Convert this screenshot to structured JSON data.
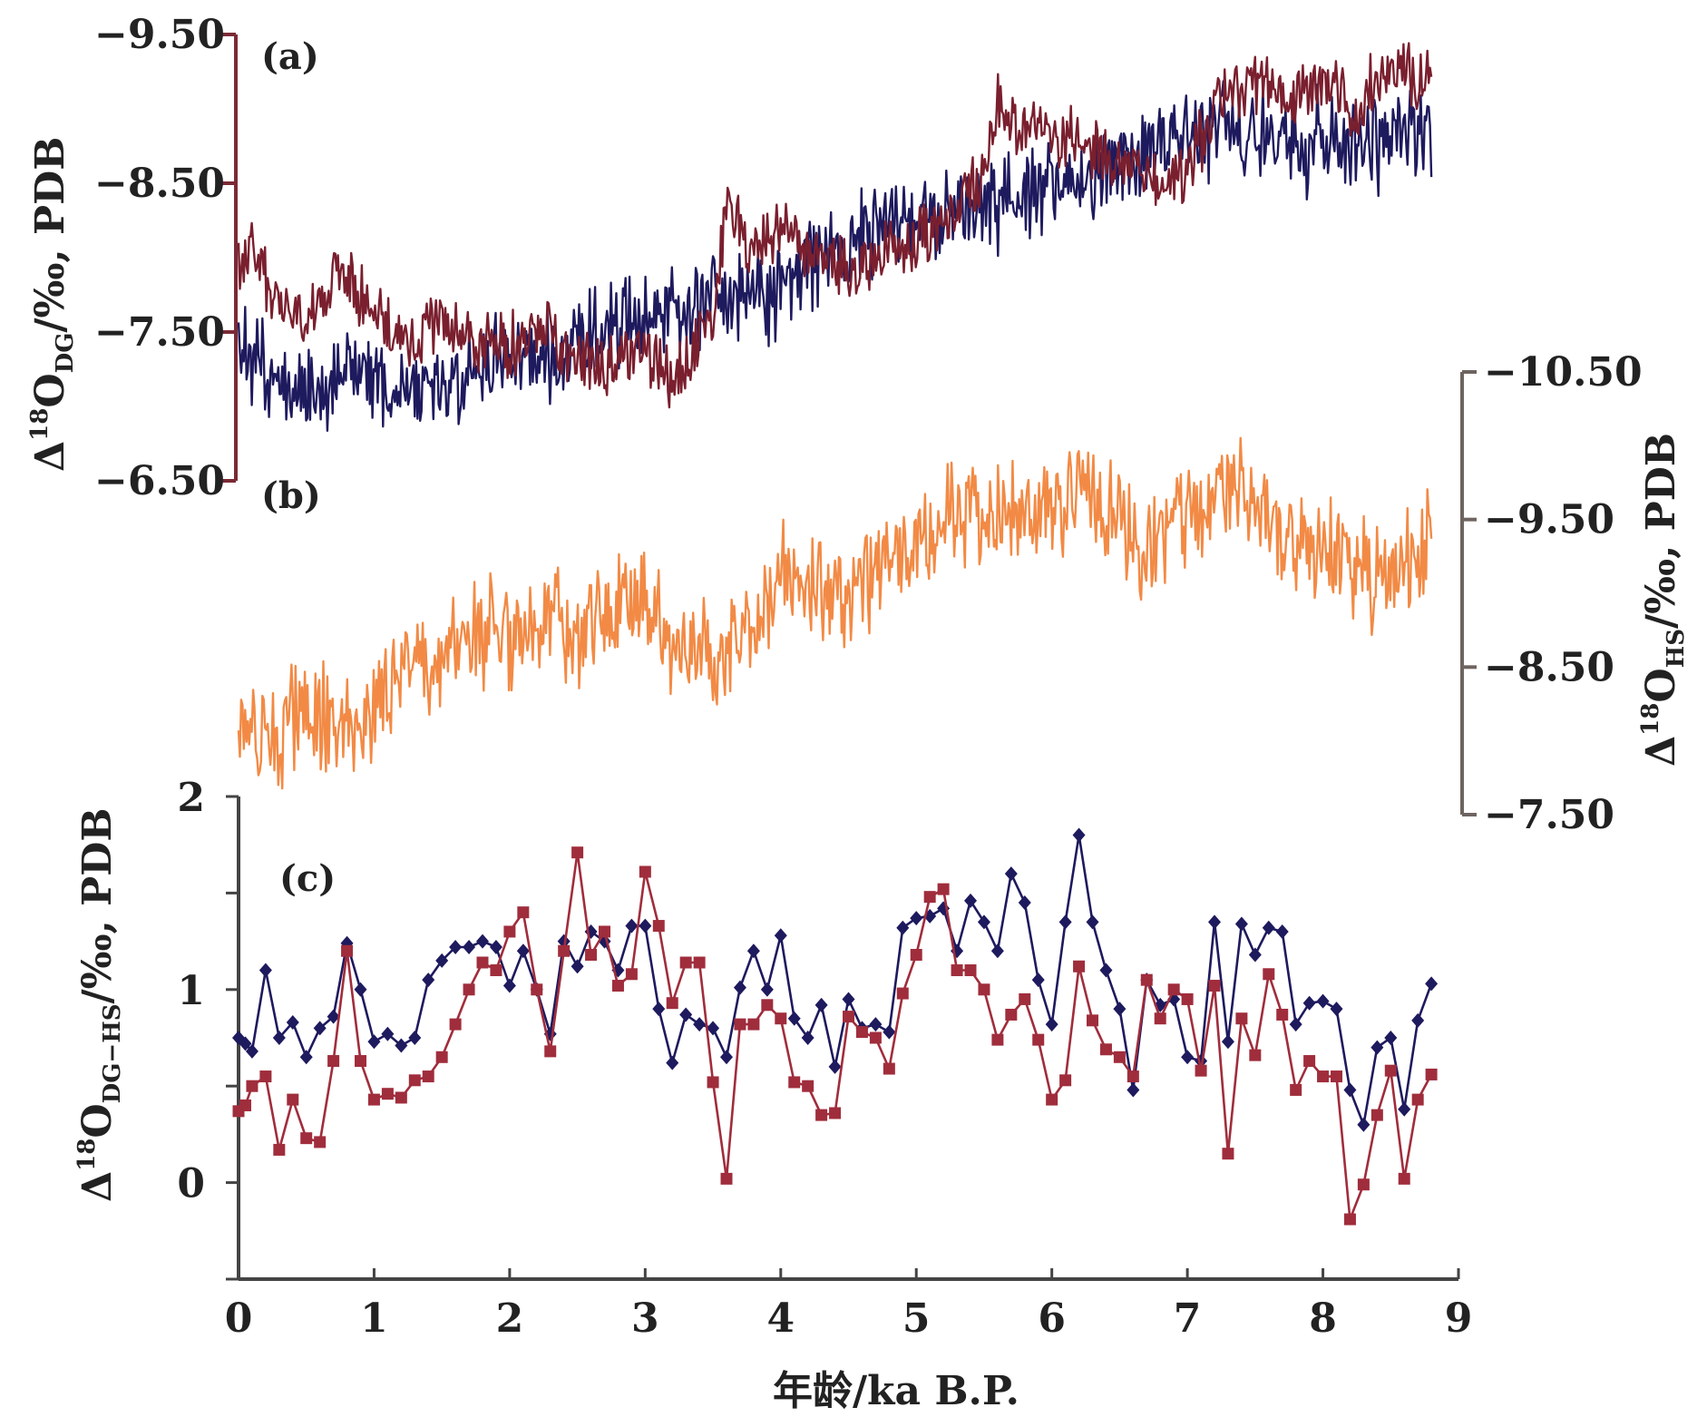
{
  "chart_data": [
    {
      "panel": "a",
      "type": "line",
      "panel_label": "(a)",
      "ylabel": {
        "prefix": "Δ",
        "sup": "18",
        "main": "O",
        "sub": "DG",
        "suffix": "/‰, PDB"
      },
      "ylim": [
        -6.5,
        -9.5
      ],
      "y_ticks": [
        "-9.50",
        "-8.50",
        "-7.50",
        "-6.50"
      ],
      "y_tick_values": [
        -9.5,
        -8.5,
        -7.5,
        -6.5
      ],
      "axis_color": "#7a2a35",
      "xlim": [
        0,
        9
      ],
      "series": [
        {
          "color": "#1e1a5e",
          "x": [
            0.0,
            0.25,
            0.5,
            0.75,
            1.0,
            1.25,
            1.5,
            1.75,
            2.0,
            2.25,
            2.5,
            2.75,
            3.0,
            3.25,
            3.5,
            3.75,
            4.0,
            4.25,
            4.5,
            4.75,
            5.0,
            5.25,
            5.5,
            5.75,
            6.0,
            6.25,
            6.5,
            6.75,
            7.0,
            7.25,
            7.5,
            7.75,
            8.0,
            8.25,
            8.5,
            8.75,
            8.8
          ],
          "y": [
            -7.4,
            -7.2,
            -7.1,
            -7.2,
            -7.2,
            -7.15,
            -7.1,
            -7.3,
            -7.4,
            -7.35,
            -7.4,
            -7.6,
            -7.6,
            -7.65,
            -7.7,
            -7.75,
            -7.8,
            -8.0,
            -8.1,
            -8.2,
            -8.25,
            -8.3,
            -8.35,
            -8.45,
            -8.5,
            -8.55,
            -8.6,
            -8.7,
            -8.85,
            -8.9,
            -8.8,
            -8.75,
            -8.8,
            -8.75,
            -8.8,
            -8.75,
            -8.7
          ],
          "noise": 0.28
        },
        {
          "color": "#7a1f2e",
          "x": [
            0.0,
            0.1,
            0.25,
            0.5,
            0.75,
            1.0,
            1.25,
            1.5,
            1.75,
            2.0,
            2.25,
            2.5,
            2.75,
            3.0,
            3.2,
            3.5,
            3.6,
            3.75,
            4.0,
            4.25,
            4.5,
            4.75,
            5.0,
            5.25,
            5.5,
            5.6,
            5.75,
            6.0,
            6.25,
            6.5,
            6.75,
            7.0,
            7.25,
            7.5,
            7.75,
            8.0,
            8.25,
            8.5,
            8.75,
            8.8
          ],
          "y": [
            -7.9,
            -8.1,
            -7.7,
            -7.6,
            -7.9,
            -7.6,
            -7.4,
            -7.6,
            -7.4,
            -7.4,
            -7.5,
            -7.3,
            -7.3,
            -7.4,
            -7.2,
            -7.6,
            -8.35,
            -8.1,
            -8.2,
            -8.0,
            -7.9,
            -8.0,
            -8.1,
            -8.3,
            -8.6,
            -9.0,
            -8.9,
            -8.8,
            -8.8,
            -8.6,
            -8.5,
            -8.6,
            -9.1,
            -9.2,
            -9.1,
            -9.2,
            -9.0,
            -9.3,
            -9.2,
            -9.2
          ],
          "noise": 0.18
        }
      ]
    },
    {
      "panel": "b",
      "type": "line",
      "panel_label": "(b)",
      "ylabel": {
        "prefix": "Δ",
        "sup": "18",
        "main": "O",
        "sub": "HS",
        "suffix": "/‰, PDB"
      },
      "ylim": [
        -7.5,
        -10.5
      ],
      "y_ticks": [
        "-10.50",
        "-9.50",
        "-8.50",
        "-7.50"
      ],
      "y_tick_values": [
        -10.5,
        -9.5,
        -8.5,
        -7.5
      ],
      "axis_color": "#6e6460",
      "xlim": [
        0,
        9
      ],
      "series": [
        {
          "color": "#f28a45",
          "x": [
            0.0,
            0.25,
            0.5,
            0.75,
            1.0,
            1.25,
            1.5,
            1.75,
            2.0,
            2.25,
            2.5,
            2.75,
            3.0,
            3.25,
            3.5,
            3.75,
            4.0,
            4.25,
            4.5,
            4.75,
            5.0,
            5.25,
            5.5,
            5.75,
            6.0,
            6.25,
            6.5,
            6.75,
            7.0,
            7.25,
            7.5,
            7.75,
            8.0,
            8.25,
            8.5,
            8.75,
            8.8
          ],
          "y": [
            -8.1,
            -8.0,
            -8.2,
            -8.1,
            -8.2,
            -8.5,
            -8.6,
            -8.7,
            -8.7,
            -8.8,
            -8.75,
            -8.9,
            -8.9,
            -8.7,
            -8.6,
            -8.7,
            -9.1,
            -9.0,
            -9.0,
            -9.2,
            -9.4,
            -9.5,
            -9.6,
            -9.5,
            -9.6,
            -9.7,
            -9.5,
            -9.3,
            -9.6,
            -9.7,
            -9.6,
            -9.4,
            -9.3,
            -9.2,
            -9.1,
            -9.3,
            -9.4
          ],
          "noise": 0.32
        }
      ]
    },
    {
      "panel": "c",
      "type": "line",
      "panel_label": "(c)",
      "xlabel": "年龄/ka B.P.",
      "ylabel": {
        "prefix": "Δ",
        "sup": "18",
        "main": "O",
        "sub": "DG−HS",
        "suffix": "/‰, PDB"
      },
      "xlim": [
        0,
        9
      ],
      "ylim": [
        -0.5,
        2
      ],
      "x_ticks": [
        "0",
        "1",
        "2",
        "3",
        "4",
        "5",
        "6",
        "7",
        "8",
        "9"
      ],
      "x_tick_values": [
        0,
        1,
        2,
        3,
        4,
        5,
        6,
        7,
        8,
        9
      ],
      "y_ticks": [
        "0",
        "1",
        "2"
      ],
      "y_tick_values": [
        0,
        1,
        2
      ],
      "x": [
        0.0,
        0.05,
        0.1,
        0.2,
        0.3,
        0.4,
        0.5,
        0.6,
        0.7,
        0.8,
        0.9,
        1.0,
        1.1,
        1.2,
        1.3,
        1.4,
        1.5,
        1.6,
        1.7,
        1.8,
        1.9,
        2.0,
        2.1,
        2.2,
        2.3,
        2.4,
        2.5,
        2.6,
        2.7,
        2.8,
        2.9,
        3.0,
        3.1,
        3.2,
        3.3,
        3.4,
        3.5,
        3.6,
        3.7,
        3.8,
        3.9,
        4.0,
        4.1,
        4.2,
        4.3,
        4.4,
        4.5,
        4.6,
        4.7,
        4.8,
        4.9,
        5.0,
        5.1,
        5.2,
        5.3,
        5.4,
        5.5,
        5.6,
        5.7,
        5.8,
        5.9,
        6.0,
        6.1,
        6.2,
        6.3,
        6.4,
        6.5,
        6.6,
        6.7,
        6.8,
        6.9,
        7.0,
        7.1,
        7.2,
        7.3,
        7.4,
        7.5,
        7.6,
        7.7,
        7.8,
        7.9,
        8.0,
        8.1,
        8.2,
        8.3,
        8.4,
        8.5,
        8.6,
        8.7,
        8.8
      ],
      "series": [
        {
          "color": "#1e1a5e",
          "marker": "diamond",
          "y": [
            0.75,
            0.72,
            0.68,
            1.1,
            0.75,
            0.83,
            0.65,
            0.8,
            0.86,
            1.24,
            1.0,
            0.73,
            0.77,
            0.71,
            0.75,
            1.05,
            1.15,
            1.22,
            1.22,
            1.25,
            1.22,
            1.02,
            1.2,
            1.0,
            0.77,
            1.25,
            1.12,
            1.3,
            1.25,
            1.1,
            1.33,
            1.33,
            0.9,
            0.62,
            0.87,
            0.82,
            0.8,
            0.65,
            1.01,
            1.2,
            1.0,
            1.28,
            0.85,
            0.75,
            0.92,
            0.6,
            0.95,
            0.8,
            0.82,
            0.78,
            1.32,
            1.37,
            1.38,
            1.42,
            1.2,
            1.46,
            1.35,
            1.2,
            1.6,
            1.45,
            1.05,
            0.82,
            1.35,
            1.8,
            1.35,
            1.1,
            0.9,
            0.48,
            1.05,
            0.92,
            0.95,
            0.65,
            0.63,
            1.35,
            0.73,
            1.34,
            1.18,
            1.32,
            1.3,
            0.82,
            0.93,
            0.94,
            0.9,
            0.48,
            0.3,
            0.7,
            0.75,
            0.38,
            0.84,
            1.03
          ]
        },
        {
          "color": "#a02d3c",
          "marker": "square",
          "y": [
            0.37,
            0.4,
            0.5,
            0.55,
            0.17,
            0.43,
            0.23,
            0.21,
            0.63,
            1.2,
            0.63,
            0.43,
            0.46,
            0.44,
            0.53,
            0.55,
            0.65,
            0.82,
            1.0,
            1.14,
            1.1,
            1.3,
            1.4,
            1.0,
            0.68,
            1.2,
            1.71,
            1.18,
            1.3,
            1.02,
            1.08,
            1.61,
            1.33,
            0.93,
            1.14,
            1.14,
            0.52,
            0.02,
            0.82,
            0.82,
            0.92,
            0.85,
            0.52,
            0.5,
            0.35,
            0.36,
            0.86,
            0.78,
            0.75,
            0.59,
            0.98,
            1.18,
            1.48,
            1.52,
            1.1,
            1.1,
            1.0,
            0.74,
            0.87,
            0.95,
            0.74,
            0.43,
            0.53,
            1.12,
            0.84,
            0.69,
            0.65,
            0.55,
            1.05,
            0.85,
            1.0,
            0.95,
            0.58,
            1.02,
            0.15,
            0.85,
            0.66,
            1.08,
            0.87,
            0.48,
            0.63,
            0.55,
            0.55,
            -0.19,
            -0.01,
            0.35,
            0.58,
            0.02,
            0.43,
            0.56
          ]
        }
      ]
    }
  ]
}
